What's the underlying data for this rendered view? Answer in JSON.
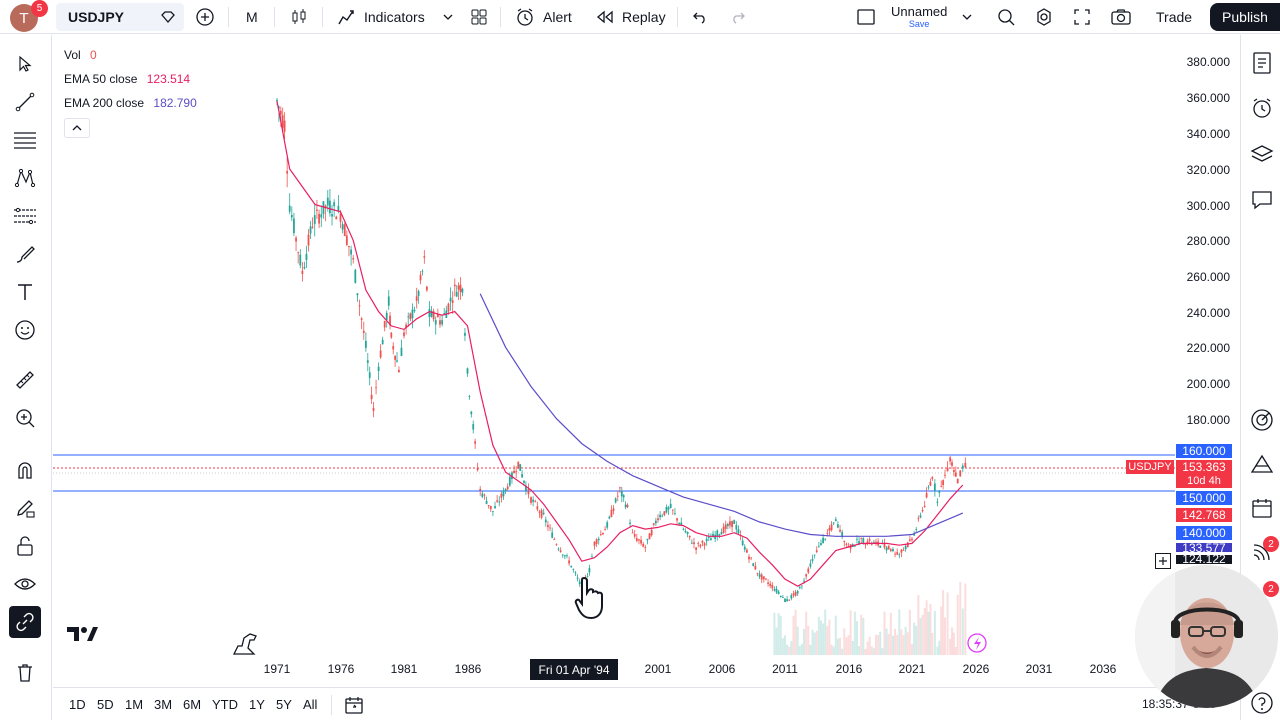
{
  "header": {
    "avatar_letter": "T",
    "notification_count": "5",
    "symbol": "USDJPY",
    "interval": "M",
    "indicators_label": "Indicators",
    "alert_label": "Alert",
    "replay_label": "Replay",
    "layout_name": "Unnamed",
    "save_label": "Save",
    "trade_label": "Trade",
    "publish_label": "Publish"
  },
  "legend": {
    "vol_label": "Vol",
    "vol_value": "0",
    "ema50_label": "EMA 50 close",
    "ema50_value": "123.514",
    "ema200_label": "EMA 200 close",
    "ema200_value": "182.790"
  },
  "price_axis": [
    "380.000",
    "360.000",
    "340.000",
    "320.000",
    "300.000",
    "280.000",
    "260.000",
    "240.000",
    "220.000",
    "200.000",
    "180.000"
  ],
  "price_tags": {
    "p160": "160.000",
    "symbol_tag": "USDJPY",
    "current": "153.363",
    "countdown": "10d 4h",
    "p150": "150.000",
    "ema50": "142.768",
    "p140": "140.000",
    "hidden1": "133.577",
    "hidden2": "124.122"
  },
  "date_axis": [
    "1971",
    "1976",
    "1981",
    "1986",
    "2001",
    "2006",
    "2011",
    "2016",
    "2021",
    "2026",
    "2031",
    "2036"
  ],
  "crosshair_date": "Fri 01 Apr '94",
  "time_ranges": [
    "1D",
    "5D",
    "1M",
    "3M",
    "6M",
    "YTD",
    "1Y",
    "5Y",
    "All"
  ],
  "clock": "18:35:37 UTC",
  "right_badges": [
    "2",
    "2"
  ],
  "colors": {
    "ema50": "#e91e63",
    "ema200": "#5b4ec9",
    "up": "#26a69a",
    "down": "#ef5350",
    "hline": "#2962ff"
  },
  "chart_data": {
    "type": "line",
    "title": "",
    "xlabel": "",
    "ylabel": "",
    "x_range": [
      1968,
      2038
    ],
    "y_range": [
      77,
      388
    ],
    "grid": false,
    "horizontal_lines": [
      160,
      150
    ],
    "price_series": [
      [
        1971,
        358
      ],
      [
        1971.6,
        345
      ],
      [
        1972,
        300
      ],
      [
        1973,
        262
      ],
      [
        1973.8,
        290
      ],
      [
        1975,
        300
      ],
      [
        1976,
        295
      ],
      [
        1977,
        268
      ],
      [
        1978,
        220
      ],
      [
        1978.6,
        185
      ],
      [
        1979,
        210
      ],
      [
        1979.8,
        245
      ],
      [
        1980,
        225
      ],
      [
        1980.6,
        208
      ],
      [
        1981,
        228
      ],
      [
        1982,
        245
      ],
      [
        1982.6,
        268
      ],
      [
        1983,
        238
      ],
      [
        1984,
        235
      ],
      [
        1985,
        252
      ],
      [
        1985.6,
        255
      ],
      [
        1986,
        205
      ],
      [
        1986.6,
        165
      ],
      [
        1987,
        140
      ],
      [
        1988,
        128
      ],
      [
        1989,
        140
      ],
      [
        1990,
        155
      ],
      [
        1990.6,
        142
      ],
      [
        1991,
        135
      ],
      [
        1992,
        125
      ],
      [
        1993,
        110
      ],
      [
        1994,
        100
      ],
      [
        1995,
        85
      ],
      [
        1995.6,
        95
      ],
      [
        1996,
        110
      ],
      [
        1997,
        120
      ],
      [
        1998,
        140
      ],
      [
        1998.6,
        130
      ],
      [
        1999,
        115
      ],
      [
        2000,
        108
      ],
      [
        2001,
        125
      ],
      [
        2002,
        130
      ],
      [
        2003,
        118
      ],
      [
        2004,
        108
      ],
      [
        2005,
        112
      ],
      [
        2006,
        117
      ],
      [
        2007,
        122
      ],
      [
        2008,
        105
      ],
      [
        2009,
        92
      ],
      [
        2010,
        86
      ],
      [
        2011,
        78
      ],
      [
        2012,
        82
      ],
      [
        2013,
        98
      ],
      [
        2014,
        112
      ],
      [
        2015,
        122
      ],
      [
        2016,
        108
      ],
      [
        2017,
        112
      ],
      [
        2018,
        110
      ],
      [
        2019,
        108
      ],
      [
        2020,
        104
      ],
      [
        2021,
        112
      ],
      [
        2022,
        132
      ],
      [
        2022.6,
        148
      ],
      [
        2023,
        135
      ],
      [
        2023.6,
        148
      ],
      [
        2024,
        158
      ],
      [
        2024.6,
        145
      ],
      [
        2025,
        152
      ],
      [
        2025.4,
        153.363
      ]
    ],
    "ema50_series": [
      [
        1971,
        358
      ],
      [
        1972,
        320
      ],
      [
        1974,
        300
      ],
      [
        1976,
        296
      ],
      [
        1977,
        280
      ],
      [
        1978,
        252
      ],
      [
        1979,
        240
      ],
      [
        1980,
        232
      ],
      [
        1981,
        230
      ],
      [
        1982,
        236
      ],
      [
        1983,
        240
      ],
      [
        1984,
        238
      ],
      [
        1985,
        240
      ],
      [
        1986,
        232
      ],
      [
        1987,
        195
      ],
      [
        1988,
        165
      ],
      [
        1989,
        150
      ],
      [
        1990,
        145
      ],
      [
        1991,
        140
      ],
      [
        1992,
        132
      ],
      [
        1993,
        122
      ],
      [
        1994,
        112
      ],
      [
        1995,
        100
      ],
      [
        1996,
        102
      ],
      [
        1997,
        108
      ],
      [
        1998,
        116
      ],
      [
        1999,
        120
      ],
      [
        2000,
        118
      ],
      [
        2001,
        119
      ],
      [
        2002,
        121
      ],
      [
        2003,
        120
      ],
      [
        2004,
        116
      ],
      [
        2005,
        114
      ],
      [
        2006,
        114
      ],
      [
        2007,
        116
      ],
      [
        2008,
        113
      ],
      [
        2009,
        105
      ],
      [
        2010,
        98
      ],
      [
        2011,
        90
      ],
      [
        2012,
        86
      ],
      [
        2013,
        90
      ],
      [
        2014,
        98
      ],
      [
        2015,
        106
      ],
      [
        2016,
        108
      ],
      [
        2017,
        110
      ],
      [
        2018,
        110
      ],
      [
        2019,
        110
      ],
      [
        2020,
        109
      ],
      [
        2021,
        110
      ],
      [
        2022,
        117
      ],
      [
        2023,
        126
      ],
      [
        2024,
        135
      ],
      [
        2025,
        142.768
      ]
    ],
    "ema200_series": [
      [
        1987,
        250
      ],
      [
        1989,
        220
      ],
      [
        1991,
        198
      ],
      [
        1993,
        180
      ],
      [
        1995,
        166
      ],
      [
        1997,
        156
      ],
      [
        1999,
        148
      ],
      [
        2001,
        142
      ],
      [
        2003,
        136
      ],
      [
        2005,
        132
      ],
      [
        2007,
        128
      ],
      [
        2009,
        122
      ],
      [
        2011,
        118
      ],
      [
        2013,
        115
      ],
      [
        2015,
        114
      ],
      [
        2017,
        114
      ],
      [
        2019,
        114
      ],
      [
        2021,
        115
      ],
      [
        2023,
        121
      ],
      [
        2025,
        127
      ]
    ]
  }
}
